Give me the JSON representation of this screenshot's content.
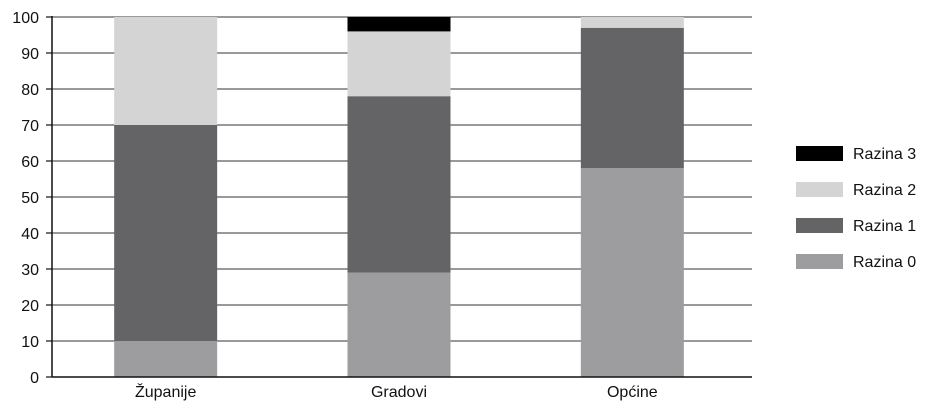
{
  "chart_data": {
    "type": "bar",
    "stacked": true,
    "categories": [
      "Županije",
      "Gradovi",
      "Općine"
    ],
    "series": [
      {
        "name": "Razina 0",
        "color": "#9d9d9f",
        "values": [
          10,
          29,
          58
        ]
      },
      {
        "name": "Razina 1",
        "color": "#646466",
        "values": [
          60,
          49,
          39
        ]
      },
      {
        "name": "Razina 2",
        "color": "#d4d4d4",
        "values": [
          30,
          18,
          3
        ]
      },
      {
        "name": "Razina 3",
        "color": "#000000",
        "values": [
          0,
          4,
          0
        ]
      }
    ],
    "ylim": [
      0,
      100
    ],
    "yticks": [
      0,
      10,
      20,
      30,
      40,
      50,
      60,
      70,
      80,
      90,
      100
    ],
    "grid": true,
    "legend_position": "right",
    "title": "",
    "xlabel": "",
    "ylabel": ""
  }
}
